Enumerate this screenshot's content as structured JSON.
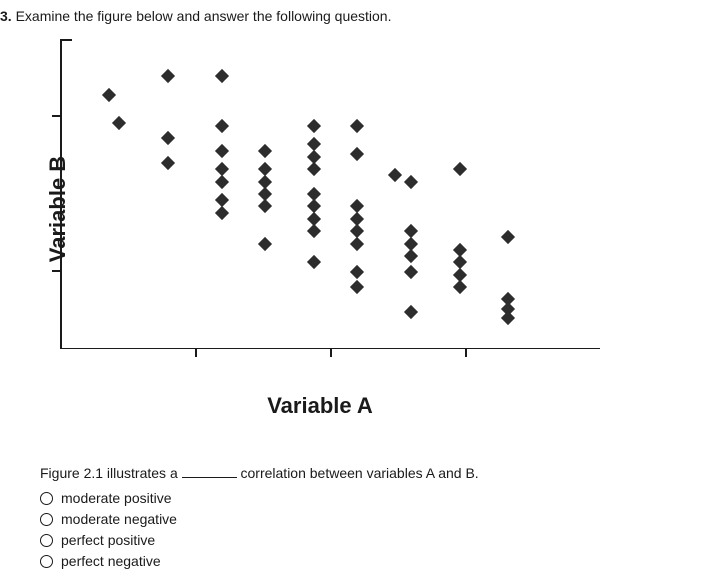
{
  "question": {
    "number": "3.",
    "prompt": "Examine the figure below and answer the following question."
  },
  "chart": {
    "type": "scatter",
    "xlabel": "Variable A",
    "ylabel": "Variable B",
    "xlim": [
      0,
      100
    ],
    "ylim": [
      0,
      100
    ],
    "x_ticks": [
      25,
      50,
      75
    ],
    "y_ticks": [
      25,
      50,
      75
    ],
    "marker_style": "diamond",
    "marker_color": "#2d2d2d",
    "marker_size": 10,
    "axis_color": "#1a1a1a",
    "background_color": "#ffffff",
    "points": [
      {
        "x": 9,
        "y": 82
      },
      {
        "x": 11,
        "y": 73
      },
      {
        "x": 20,
        "y": 88
      },
      {
        "x": 20,
        "y": 68
      },
      {
        "x": 20,
        "y": 60
      },
      {
        "x": 30,
        "y": 88
      },
      {
        "x": 30,
        "y": 72
      },
      {
        "x": 30,
        "y": 64
      },
      {
        "x": 30,
        "y": 58
      },
      {
        "x": 30,
        "y": 54
      },
      {
        "x": 30,
        "y": 48
      },
      {
        "x": 30,
        "y": 44
      },
      {
        "x": 38,
        "y": 64
      },
      {
        "x": 38,
        "y": 58
      },
      {
        "x": 38,
        "y": 54
      },
      {
        "x": 38,
        "y": 50
      },
      {
        "x": 38,
        "y": 46
      },
      {
        "x": 38,
        "y": 34
      },
      {
        "x": 47,
        "y": 72
      },
      {
        "x": 47,
        "y": 66
      },
      {
        "x": 47,
        "y": 62
      },
      {
        "x": 47,
        "y": 58
      },
      {
        "x": 47,
        "y": 50
      },
      {
        "x": 47,
        "y": 46
      },
      {
        "x": 47,
        "y": 42
      },
      {
        "x": 47,
        "y": 38
      },
      {
        "x": 47,
        "y": 28
      },
      {
        "x": 55,
        "y": 72
      },
      {
        "x": 55,
        "y": 63
      },
      {
        "x": 55,
        "y": 46
      },
      {
        "x": 55,
        "y": 42
      },
      {
        "x": 55,
        "y": 38
      },
      {
        "x": 55,
        "y": 34
      },
      {
        "x": 55,
        "y": 25
      },
      {
        "x": 55,
        "y": 20
      },
      {
        "x": 62,
        "y": 56
      },
      {
        "x": 65,
        "y": 54
      },
      {
        "x": 65,
        "y": 38
      },
      {
        "x": 65,
        "y": 34
      },
      {
        "x": 65,
        "y": 30
      },
      {
        "x": 65,
        "y": 25
      },
      {
        "x": 65,
        "y": 12
      },
      {
        "x": 74,
        "y": 58
      },
      {
        "x": 74,
        "y": 32
      },
      {
        "x": 74,
        "y": 28
      },
      {
        "x": 74,
        "y": 24
      },
      {
        "x": 74,
        "y": 20
      },
      {
        "x": 83,
        "y": 36
      },
      {
        "x": 83,
        "y": 16
      },
      {
        "x": 83,
        "y": 13
      },
      {
        "x": 83,
        "y": 10
      }
    ]
  },
  "stem": {
    "before": "Figure 2.1 illustrates a ",
    "after": " correlation between variables A and B."
  },
  "options": [
    {
      "label": "moderate positive"
    },
    {
      "label": "moderate negative"
    },
    {
      "label": "perfect positive"
    },
    {
      "label": "perfect negative"
    }
  ]
}
